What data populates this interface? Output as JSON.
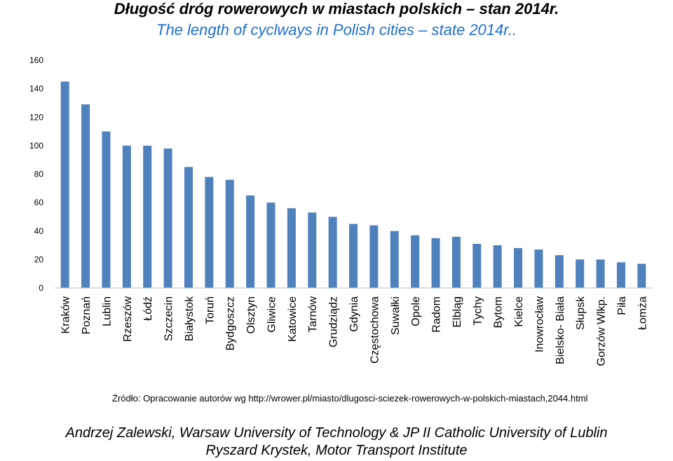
{
  "title_pl": "Długość dróg rowerowych w miastach polskich – stan 2014r.",
  "title_en": "The length of cyclways in Polish cities – state 2014r..",
  "source": "Źródło: Opracowanie autorów wg http://wrower.pl/miasto/dlugosci-sciezek-rowerowych-w-polskich-miastach,2044.html",
  "footer": {
    "line1": "Andrzej Zalewski, Warsaw University of Technology & JP II Catholic University of Lublin",
    "line2": "Ryszard Krystek, Motor Transport Institute"
  },
  "colors": {
    "bar": "#4f81bd",
    "title_en": "#1f6fd0",
    "axis": "#bfbfbf"
  },
  "chart_data": {
    "type": "bar",
    "title": "Długość dróg rowerowych w miastach polskich – stan 2014r.",
    "subtitle": "The length of cyclways in Polish cities – state 2014r..",
    "xlabel": "",
    "ylabel": "",
    "ylim": [
      0,
      160
    ],
    "yticks": [
      0,
      20,
      40,
      60,
      80,
      100,
      120,
      140,
      160
    ],
    "grid": false,
    "legend": "none",
    "categories": [
      "Kraków",
      "Poznań",
      "Lublin",
      "Rzeszów",
      "Łódź",
      "Szczecin",
      "Białystok",
      "Toruń",
      "Bydgoszcz",
      "Olsztyn",
      "Gliwice",
      "Katowice",
      "Tarnów",
      "Grudziądz",
      "Gdynia",
      "Częstochowa",
      "Suwałki",
      "Opole",
      "Radom",
      "Elbląg",
      "Tychy",
      "Bytom",
      "Kielce",
      "Inowrocław",
      "Bielsko- Biała",
      "Słupsk",
      "Gorzów Wlkp.",
      "Piła",
      "Łomża"
    ],
    "values": [
      145,
      129,
      110,
      100,
      100,
      98,
      85,
      78,
      76,
      65,
      60,
      56,
      53,
      50,
      45,
      44,
      40,
      37,
      35,
      36,
      31,
      30,
      28,
      27,
      23,
      20,
      20,
      18,
      17
    ]
  }
}
